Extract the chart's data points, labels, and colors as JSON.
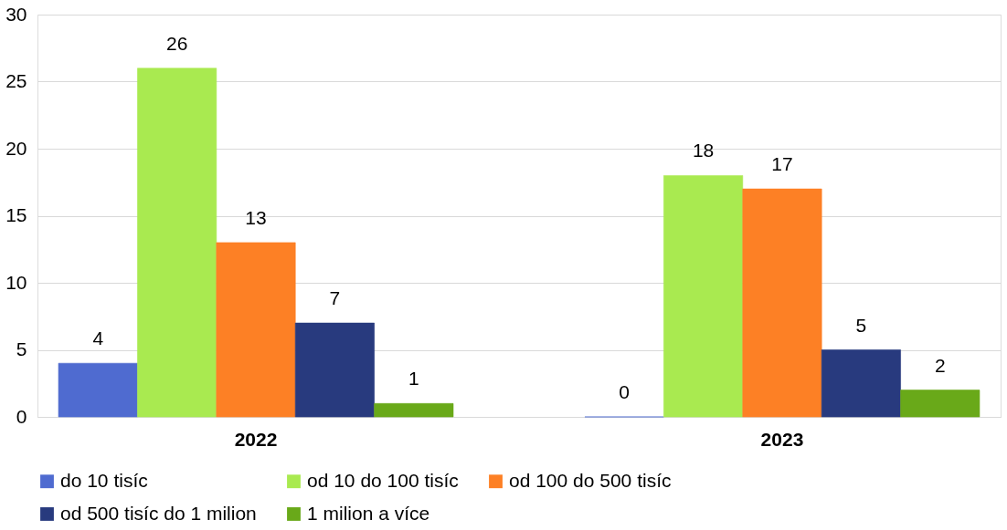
{
  "chart_data": {
    "type": "bar",
    "categories": [
      "2022",
      "2023"
    ],
    "series": [
      {
        "name": "do 10 tisíc",
        "color": "#4f6bd0",
        "values": [
          4,
          0
        ]
      },
      {
        "name": "od 10 do 100 tisíc",
        "color": "#a9ea50",
        "values": [
          26,
          18
        ]
      },
      {
        "name": "od 100 do 500 tisíc",
        "color": "#fd8025",
        "values": [
          13,
          17
        ]
      },
      {
        "name": "od 500 tisíc do 1 milion",
        "color": "#283a7e",
        "values": [
          7,
          5
        ]
      },
      {
        "name": "1 milion a více",
        "color": "#69a919",
        "values": [
          1,
          2
        ]
      }
    ],
    "ylim": [
      0,
      30
    ],
    "yticks": [
      0,
      5,
      10,
      15,
      20,
      25,
      30
    ],
    "grid": "y",
    "legend": "bottom",
    "data_labels": true
  }
}
